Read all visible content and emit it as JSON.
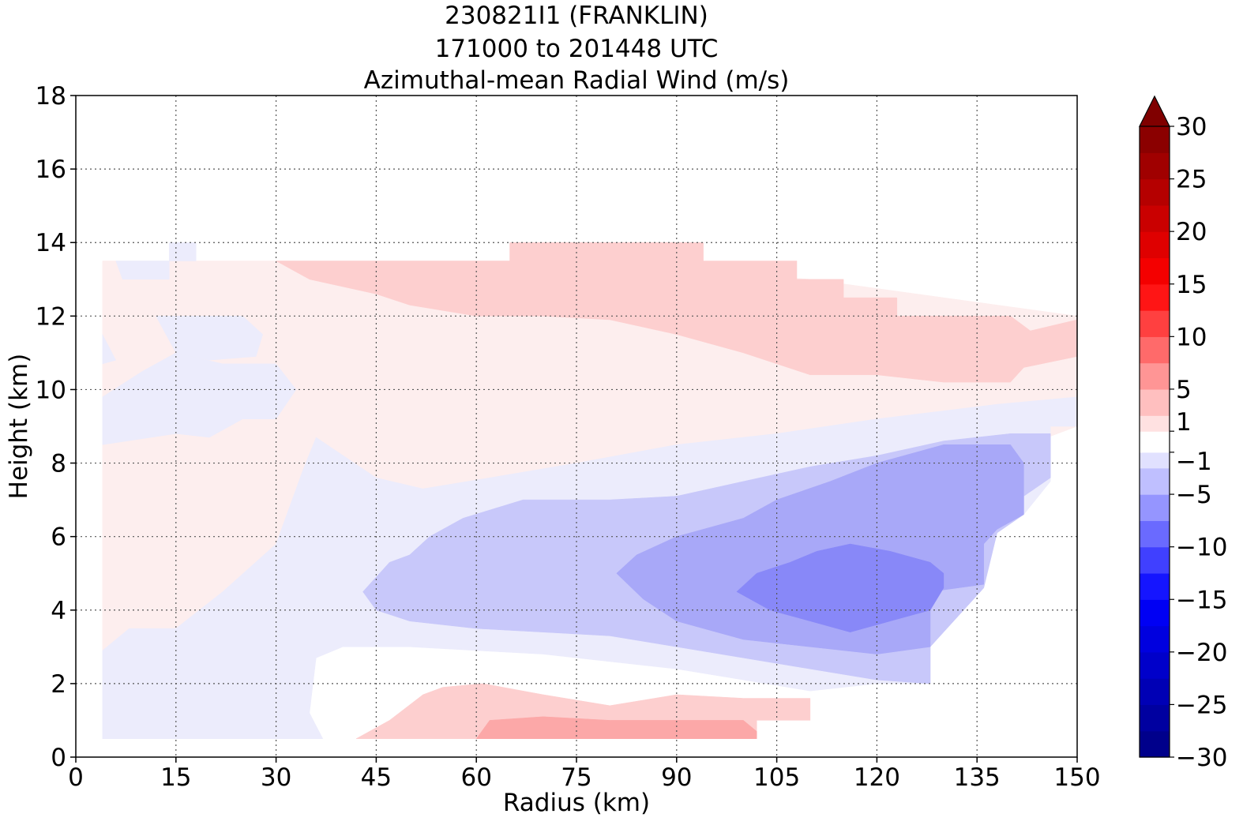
{
  "chart_data": {
    "type": "heatmap",
    "title_lines": [
      "230821I1 (FRANKLIN)",
      "171000 to 201448 UTC",
      "Azimuthal-mean Radial Wind (m/s)"
    ],
    "xlabel": "Radius (km)",
    "ylabel": "Height (km)",
    "xlim": [
      0,
      150
    ],
    "ylim": [
      0,
      18
    ],
    "xticks": [
      0,
      15,
      30,
      45,
      60,
      75,
      90,
      105,
      120,
      135,
      150
    ],
    "yticks": [
      0,
      2,
      4,
      6,
      8,
      10,
      12,
      14,
      16,
      18
    ],
    "grid": true,
    "colorbar": {
      "min": -30,
      "max": 30,
      "extend": "max",
      "tick_values": [
        30,
        25,
        20,
        15,
        10,
        5,
        1,
        -1,
        -5,
        -10,
        -15,
        -20,
        -25,
        -30
      ],
      "tick_labels": [
        "30",
        "25",
        "20",
        "15",
        "10",
        "5",
        "1",
        "−1",
        "−5",
        "−10",
        "−15",
        "−20",
        "−25",
        "−30"
      ]
    },
    "contour_regions": [
      {
        "level": "1 to 2.5",
        "color": "#fdeeee",
        "points": [
          [
            4,
            0.5
          ],
          [
            4,
            13.5
          ],
          [
            42,
            13.5
          ],
          [
            70,
            13.5
          ],
          [
            110,
            13
          ],
          [
            150,
            12
          ],
          [
            150,
            9
          ],
          [
            128,
            7.5
          ],
          [
            100,
            6.5
          ],
          [
            70,
            6
          ],
          [
            40,
            5
          ],
          [
            30,
            3
          ],
          [
            25,
            0.5
          ]
        ]
      },
      {
        "level": "-2.5 to -1",
        "color": "#ececfc",
        "points": [
          [
            4,
            0.5
          ],
          [
            4,
            2.9
          ],
          [
            8,
            3.5
          ],
          [
            15,
            3.5
          ],
          [
            22,
            4.5
          ],
          [
            30,
            5.8
          ],
          [
            34,
            7.8
          ],
          [
            36,
            8.7
          ],
          [
            45,
            7.6
          ],
          [
            52,
            7.3
          ],
          [
            62,
            7.6
          ],
          [
            75,
            8
          ],
          [
            90,
            8.5
          ],
          [
            105,
            8.8
          ],
          [
            120,
            9.2
          ],
          [
            138,
            9.6
          ],
          [
            150,
            9.8
          ],
          [
            150,
            9
          ],
          [
            146,
            9
          ],
          [
            146,
            7.5
          ],
          [
            142,
            6.6
          ],
          [
            138,
            6.2
          ],
          [
            136,
            4.7
          ],
          [
            128,
            3
          ],
          [
            128,
            2
          ],
          [
            120,
            2
          ],
          [
            110,
            1.8
          ],
          [
            100,
            2.1
          ],
          [
            90,
            2.4
          ],
          [
            80,
            2.6
          ],
          [
            70,
            2.8
          ],
          [
            60,
            2.9
          ],
          [
            50,
            3
          ],
          [
            40,
            3
          ],
          [
            36,
            2.7
          ],
          [
            35,
            1.2
          ],
          [
            37,
            0.5
          ]
        ]
      },
      {
        "level": "-2.5 to -1",
        "color": "#ececfc",
        "points": [
          [
            4,
            8.5
          ],
          [
            15,
            8.8
          ],
          [
            20,
            8.7
          ],
          [
            25,
            9.2
          ],
          [
            30,
            9.2
          ],
          [
            33,
            10
          ],
          [
            30,
            10.7
          ],
          [
            22,
            10.7
          ],
          [
            15,
            11
          ],
          [
            12,
            12
          ],
          [
            16,
            12
          ],
          [
            25,
            12
          ],
          [
            28,
            11.5
          ],
          [
            27,
            10.9
          ],
          [
            20,
            10.8
          ],
          [
            15,
            11
          ],
          [
            10,
            10.5
          ],
          [
            4,
            9.8
          ]
        ]
      },
      {
        "level": "-2.5 to -1",
        "color": "#ececfc",
        "points": [
          [
            4,
            11.5
          ],
          [
            6,
            10.8
          ],
          [
            4,
            10.7
          ]
        ]
      },
      {
        "level": "-2.5 to -1",
        "color": "#ececfc",
        "points": [
          [
            6,
            13.5
          ],
          [
            14,
            13.5
          ],
          [
            14,
            13
          ],
          [
            7,
            13
          ]
        ]
      },
      {
        "level": "-2.5 to -1",
        "color": "#ececfc",
        "points": [
          [
            14,
            13.5
          ],
          [
            14,
            14
          ],
          [
            18,
            14
          ],
          [
            18,
            13.5
          ]
        ]
      },
      {
        "level": "-5 to -2.5",
        "color": "#c8c8fa",
        "points": [
          [
            43,
            4.5
          ],
          [
            47,
            5.3
          ],
          [
            50,
            5.5
          ],
          [
            53,
            6
          ],
          [
            58,
            6.5
          ],
          [
            67,
            7
          ],
          [
            80,
            7
          ],
          [
            90,
            7.1
          ],
          [
            100,
            7.5
          ],
          [
            110,
            7.9
          ],
          [
            120,
            8.2
          ],
          [
            130,
            8.6
          ],
          [
            140,
            8.8
          ],
          [
            146,
            8.8
          ],
          [
            146,
            7.6
          ],
          [
            142,
            7.1
          ],
          [
            142,
            6.6
          ],
          [
            138,
            6.1
          ],
          [
            136,
            4.6
          ],
          [
            128,
            3
          ],
          [
            128,
            2
          ],
          [
            120,
            2.1
          ],
          [
            110,
            2.4
          ],
          [
            100,
            2.7
          ],
          [
            90,
            3
          ],
          [
            80,
            3.3
          ],
          [
            70,
            3.4
          ],
          [
            60,
            3.5
          ],
          [
            50,
            3.7
          ],
          [
            45,
            4
          ]
        ]
      },
      {
        "level": "-7.5 to -5",
        "color": "#a8a8f8",
        "points": [
          [
            81,
            5
          ],
          [
            84,
            5.5
          ],
          [
            90,
            6
          ],
          [
            100,
            6.5
          ],
          [
            105,
            7
          ],
          [
            113,
            7.5
          ],
          [
            120,
            8
          ],
          [
            130,
            8.5
          ],
          [
            140,
            8.5
          ],
          [
            142,
            8
          ],
          [
            142,
            6.6
          ],
          [
            138,
            6.2
          ],
          [
            136,
            5.8
          ],
          [
            136,
            4.7
          ],
          [
            128,
            4.5
          ],
          [
            128,
            3
          ],
          [
            120,
            2.8
          ],
          [
            110,
            3
          ],
          [
            100,
            3.2
          ],
          [
            90,
            3.7
          ],
          [
            85,
            4.3
          ]
        ]
      },
      {
        "level": "-10 to -7.5",
        "color": "#8888f8",
        "points": [
          [
            99,
            4.5
          ],
          [
            102,
            5
          ],
          [
            107,
            5.3
          ],
          [
            111,
            5.6
          ],
          [
            116,
            5.8
          ],
          [
            122,
            5.6
          ],
          [
            128,
            5.3
          ],
          [
            130,
            5
          ],
          [
            130,
            4.6
          ],
          [
            128,
            4
          ],
          [
            122,
            3.7
          ],
          [
            116,
            3.4
          ],
          [
            110,
            3.7
          ],
          [
            104,
            4
          ]
        ]
      },
      {
        "level": "2.5 to 5",
        "color": "#fdcfcf",
        "points": [
          [
            30,
            13.5
          ],
          [
            30,
            13.5
          ],
          [
            65,
            13.5
          ],
          [
            65,
            14
          ],
          [
            94,
            14
          ],
          [
            94,
            13.5
          ],
          [
            108,
            13.5
          ],
          [
            108,
            13
          ],
          [
            115,
            13
          ],
          [
            115,
            12.5
          ],
          [
            123,
            12.5
          ],
          [
            123,
            12
          ],
          [
            140,
            12
          ],
          [
            143,
            11.6
          ],
          [
            150,
            11.9
          ],
          [
            150,
            10.9
          ],
          [
            142,
            10.6
          ],
          [
            140,
            10.2
          ],
          [
            130,
            10.2
          ],
          [
            120,
            10.4
          ],
          [
            110,
            10.4
          ],
          [
            100,
            11
          ],
          [
            90,
            11.5
          ],
          [
            80,
            11.9
          ],
          [
            70,
            12
          ],
          [
            60,
            12
          ],
          [
            50,
            12.3
          ],
          [
            45,
            12.6
          ],
          [
            40,
            12.8
          ],
          [
            35,
            13
          ]
        ]
      },
      {
        "level": "2.5 to 5",
        "color": "#fdcfcf",
        "points": [
          [
            42,
            0.5
          ],
          [
            47,
            1
          ],
          [
            52,
            1.7
          ],
          [
            55,
            1.9
          ],
          [
            61,
            2
          ],
          [
            70,
            1.7
          ],
          [
            80,
            1.4
          ],
          [
            90,
            1.7
          ],
          [
            100,
            1.6
          ],
          [
            110,
            1.6
          ],
          [
            110,
            1
          ],
          [
            102,
            1
          ],
          [
            102,
            0.5
          ]
        ]
      },
      {
        "level": "5 to 7.5",
        "color": "#fca8a8",
        "points": [
          [
            60,
            0.5
          ],
          [
            62,
            1
          ],
          [
            70,
            1.1
          ],
          [
            80,
            1
          ],
          [
            90,
            1
          ],
          [
            96,
            1
          ],
          [
            100,
            1
          ],
          [
            102,
            0.7
          ],
          [
            102,
            0.5
          ]
        ]
      }
    ]
  }
}
